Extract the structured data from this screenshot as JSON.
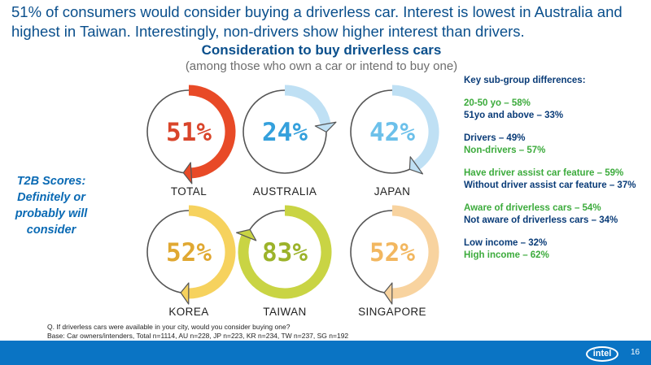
{
  "headline": "51% of consumers would consider buying a driverless car. Interest is lowest in Australia and highest in Taiwan. Interestingly, non-drivers show higher interest than drivers.",
  "t2b_label": "T2B Scores: Definitely or probably will consider",
  "chart_data": {
    "type": "donut",
    "title": "Consideration to buy driverless cars",
    "subtitle": "(among those who own a car or intend to buy one)",
    "items": [
      {
        "name": "TOTAL",
        "value": 51,
        "label": "51%",
        "color": "#e84a27",
        "text_color": "#d9452b"
      },
      {
        "name": "AUSTRALIA",
        "value": 24,
        "label": "24%",
        "color": "#bfe0f4",
        "text_color": "#34a0dc"
      },
      {
        "name": "JAPAN",
        "value": 42,
        "label": "42%",
        "color": "#bfe0f4",
        "text_color": "#6cc0ea"
      },
      {
        "name": "KOREA",
        "value": 52,
        "label": "52%",
        "color": "#f6d25e",
        "text_color": "#e0a832"
      },
      {
        "name": "TAIWAN",
        "value": 83,
        "label": "83%",
        "color": "#c9d444",
        "text_color": "#9cb32a"
      },
      {
        "name": "SINGAPORE",
        "value": 52,
        "label": "52%",
        "color": "#f8d39f",
        "text_color": "#f2b760"
      }
    ]
  },
  "subgroups": {
    "title": "Key sub-group differences:",
    "groups": [
      {
        "lines": [
          {
            "text": "20-50 yo – 58%",
            "color": "#3cab3c"
          },
          {
            "text": "51yo and above – 33%",
            "color": "#0a3c78"
          }
        ]
      },
      {
        "lines": [
          {
            "text": "Drivers – 49%",
            "color": "#0a3c78"
          },
          {
            "text": "Non-drivers – 57%",
            "color": "#3cab3c"
          }
        ]
      },
      {
        "lines": [
          {
            "text": "Have driver assist car feature – 59%",
            "color": "#3cab3c"
          },
          {
            "text": "Without driver assist car feature – 37%",
            "color": "#0a3c78"
          }
        ]
      },
      {
        "lines": [
          {
            "text": "Aware of driverless cars – 54%",
            "color": "#3cab3c"
          },
          {
            "text": "Not aware of driverless cars – 34%",
            "color": "#0a3c78"
          }
        ]
      },
      {
        "lines": [
          {
            "text": "Low income – 32%",
            "color": "#0a3c78"
          },
          {
            "text": "High income – 62%",
            "color": "#3cab3c"
          }
        ]
      }
    ]
  },
  "note": {
    "question": "Q. If driverless cars were available in your city, would you consider buying one?",
    "base": "Base: Car owners/intenders, Total n=1114, AU n=228, JP n=223, KR n=234, TW n=237, SG n=192"
  },
  "footer": {
    "logo": "intel",
    "page": "16"
  }
}
